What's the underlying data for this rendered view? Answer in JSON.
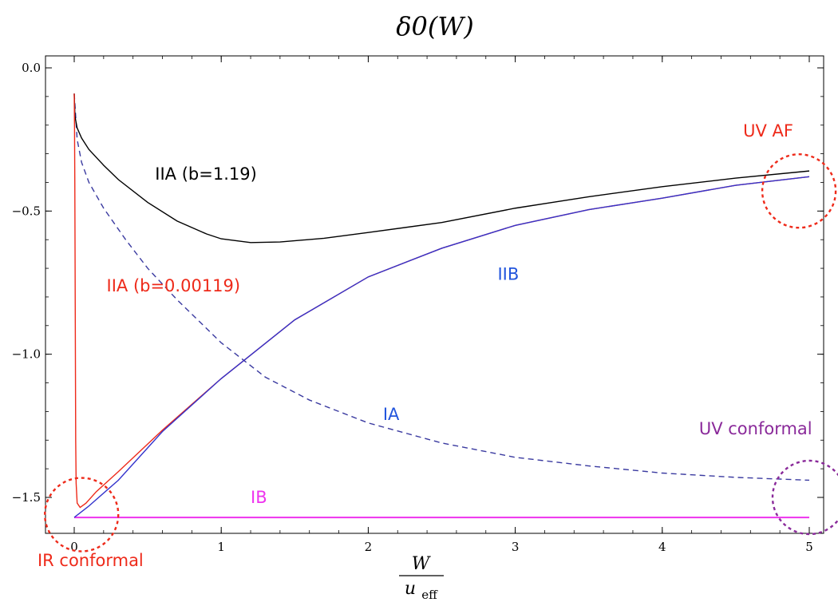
{
  "chart_data": {
    "type": "line",
    "title": "δ0(W)",
    "xlabel_numerator": "W",
    "xlabel_denominator": "u",
    "xlabel_subscript": "eff",
    "xlim": [
      -0.1,
      5.1
    ],
    "ylim": [
      -1.6,
      0.05
    ],
    "x_ticks": [
      "0",
      "1",
      "2",
      "3",
      "4",
      "5"
    ],
    "y_ticks": [
      "0.0",
      "−0.5",
      "−1.0",
      "−1.5"
    ],
    "x_tick_values": [
      0,
      1,
      2,
      3,
      4,
      5
    ],
    "y_tick_values": [
      0.0,
      -0.5,
      -1.0,
      -1.5
    ],
    "grid": false,
    "series": [
      {
        "name": "IIA (b=1.19)",
        "color": "#000000",
        "dash": false,
        "points": [
          [
            0.0,
            -0.09
          ],
          [
            0.005,
            -0.17
          ],
          [
            0.02,
            -0.21
          ],
          [
            0.05,
            -0.245
          ],
          [
            0.1,
            -0.285
          ],
          [
            0.2,
            -0.34
          ],
          [
            0.3,
            -0.39
          ],
          [
            0.5,
            -0.47
          ],
          [
            0.7,
            -0.535
          ],
          [
            0.9,
            -0.58
          ],
          [
            1.0,
            -0.597
          ],
          [
            1.2,
            -0.61
          ],
          [
            1.4,
            -0.608
          ],
          [
            1.7,
            -0.595
          ],
          [
            2.0,
            -0.575
          ],
          [
            2.5,
            -0.54
          ],
          [
            3.0,
            -0.49
          ],
          [
            3.5,
            -0.45
          ],
          [
            4.0,
            -0.415
          ],
          [
            4.5,
            -0.385
          ],
          [
            5.0,
            -0.36
          ]
        ]
      },
      {
        "name": "IIA (b=0.00119)",
        "color": "#ee2a1a",
        "dash": false,
        "points": [
          [
            0.0,
            -0.09
          ],
          [
            0.002,
            -0.2
          ],
          [
            0.004,
            -0.4
          ],
          [
            0.006,
            -0.7
          ],
          [
            0.008,
            -1.0
          ],
          [
            0.01,
            -1.3
          ],
          [
            0.013,
            -1.45
          ],
          [
            0.02,
            -1.52
          ],
          [
            0.04,
            -1.535
          ],
          [
            0.08,
            -1.52
          ],
          [
            0.15,
            -1.48
          ],
          [
            0.3,
            -1.41
          ],
          [
            0.6,
            -1.265
          ],
          [
            1.0,
            -1.085
          ],
          [
            1.5,
            -0.88
          ],
          [
            2.0,
            -0.73
          ],
          [
            2.5,
            -0.63
          ],
          [
            3.0,
            -0.55
          ],
          [
            3.5,
            -0.495
          ],
          [
            4.0,
            -0.455
          ],
          [
            4.5,
            -0.41
          ],
          [
            5.0,
            -0.38
          ]
        ]
      },
      {
        "name": "IIB",
        "color": "#3333cc",
        "dash": false,
        "points": [
          [
            0.0,
            -1.57
          ],
          [
            0.1,
            -1.53
          ],
          [
            0.3,
            -1.44
          ],
          [
            0.6,
            -1.27
          ],
          [
            1.0,
            -1.085
          ],
          [
            1.5,
            -0.88
          ],
          [
            2.0,
            -0.73
          ],
          [
            2.5,
            -0.63
          ],
          [
            3.0,
            -0.55
          ],
          [
            3.5,
            -0.495
          ],
          [
            4.0,
            -0.455
          ],
          [
            4.5,
            -0.41
          ],
          [
            5.0,
            -0.38
          ]
        ]
      },
      {
        "name": "IA",
        "color": "#3a3aa0",
        "dash": true,
        "points": [
          [
            0.0,
            -0.09
          ],
          [
            0.02,
            -0.25
          ],
          [
            0.05,
            -0.33
          ],
          [
            0.1,
            -0.4
          ],
          [
            0.2,
            -0.49
          ],
          [
            0.35,
            -0.6
          ],
          [
            0.5,
            -0.7
          ],
          [
            0.7,
            -0.81
          ],
          [
            1.0,
            -0.96
          ],
          [
            1.3,
            -1.08
          ],
          [
            1.6,
            -1.16
          ],
          [
            2.0,
            -1.24
          ],
          [
            2.5,
            -1.31
          ],
          [
            3.0,
            -1.36
          ],
          [
            3.5,
            -1.39
          ],
          [
            4.0,
            -1.415
          ],
          [
            4.5,
            -1.43
          ],
          [
            5.0,
            -1.44
          ]
        ]
      },
      {
        "name": "IB",
        "color": "#ee33ee",
        "dash": false,
        "points": [
          [
            0.0,
            -1.57
          ],
          [
            5.0,
            -1.57
          ]
        ]
      }
    ],
    "annotations": [
      {
        "text": "IIA (b=1.19)",
        "x": 0.55,
        "y": -0.39,
        "color": "#000000"
      },
      {
        "text": "IIA (b=0.00119)",
        "x": 0.22,
        "y": -0.78,
        "color": "#ee2a1a"
      },
      {
        "text": "IIB",
        "x": 2.88,
        "y": -0.74,
        "color": "#2255dd"
      },
      {
        "text": "IA",
        "x": 2.1,
        "y": -1.23,
        "color": "#2255dd"
      },
      {
        "text": "IB",
        "x": 1.2,
        "y": -1.52,
        "color": "#ee33ee"
      },
      {
        "text": "UV AF",
        "x": 4.55,
        "y": -0.24,
        "color": "#ee2a1a"
      },
      {
        "text": "UV conformal",
        "x": 4.25,
        "y": -1.28,
        "color": "#8a2a9a"
      },
      {
        "text": "IR conformal",
        "x": -0.25,
        "y": -1.74,
        "color": "#ee2a1a"
      }
    ],
    "circles": [
      {
        "name": "uv-af-circle",
        "x": 4.93,
        "y": -0.43,
        "color": "#ee2a1a"
      },
      {
        "name": "uv-conformal-circle",
        "x": 5.0,
        "y": -1.5,
        "color": "#8a2a9a"
      },
      {
        "name": "ir-conformal-circle",
        "x": 0.05,
        "y": -1.56,
        "color": "#ee2a1a"
      }
    ]
  }
}
